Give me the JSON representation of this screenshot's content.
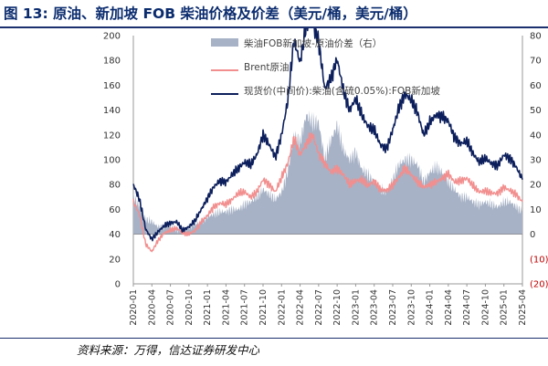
{
  "figure": {
    "title": "图 13:  原油、新加坡 FOB 柴油价格及价差（美元/桶，美元/桶）",
    "source": "资料来源：万得，信达证券研发中心"
  },
  "colors": {
    "spread": "#a7b2c6",
    "brent": "#f28e8e",
    "diesel": "#0c1f5c",
    "axis": "#999999",
    "neg": "#c00000"
  },
  "chart_data": {
    "type": "line",
    "title": "原油、新加坡 FOB 柴油价格及价差（美元/桶，美元/桶）",
    "xlabel": "",
    "ylabel": "",
    "ylim": [
      0,
      200
    ],
    "y_ticks": [
      "0",
      "20",
      "40",
      "60",
      "80",
      "100",
      "120",
      "140",
      "160",
      "180",
      "200"
    ],
    "y2lim": [
      -20,
      80
    ],
    "y2_ticks": [
      "(20)",
      "(10)",
      "0",
      "10",
      "20",
      "30",
      "40",
      "50",
      "60",
      "70",
      "80"
    ],
    "x": [
      "2020-01",
      "2020-02",
      "2020-03",
      "2020-04",
      "2020-05",
      "2020-06",
      "2020-07",
      "2020-08",
      "2020-09",
      "2020-10",
      "2020-11",
      "2020-12",
      "2021-01",
      "2021-02",
      "2021-03",
      "2021-04",
      "2021-05",
      "2021-06",
      "2021-07",
      "2021-08",
      "2021-09",
      "2021-10",
      "2021-11",
      "2021-12",
      "2022-01",
      "2022-02",
      "2022-03",
      "2022-04",
      "2022-05",
      "2022-06",
      "2022-07",
      "2022-08",
      "2022-09",
      "2022-10",
      "2022-11",
      "2022-12",
      "2023-01",
      "2023-02",
      "2023-03",
      "2023-04",
      "2023-05",
      "2023-06",
      "2023-07",
      "2023-08",
      "2023-09",
      "2023-10",
      "2023-11",
      "2023-12",
      "2024-01",
      "2024-02",
      "2024-03",
      "2024-04",
      "2024-05",
      "2024-06",
      "2024-07",
      "2024-08",
      "2024-09",
      "2024-10",
      "2024-11",
      "2024-12",
      "2025-01",
      "2025-02",
      "2025-03",
      "2025-04"
    ],
    "x_tick_labels": [
      "2020-01",
      "2020-04",
      "2020-07",
      "2020-10",
      "2021-01",
      "2021-04",
      "2021-07",
      "2021-10",
      "2022-01",
      "2022-04",
      "2022-07",
      "2022-10",
      "2023-01",
      "2023-04",
      "2023-07",
      "2023-10",
      "2024-01",
      "2024-04",
      "2024-07",
      "2024-10",
      "2025-01",
      "2025-04"
    ],
    "series": [
      {
        "name": "柴油FOB新加坡-原油价差（右）",
        "kind": "area",
        "axis": "right",
        "values": [
          15,
          11,
          6,
          5,
          3,
          3,
          3,
          2,
          1,
          3,
          4,
          5,
          7,
          8,
          9,
          9,
          10,
          10,
          12,
          13,
          15,
          18,
          16,
          14,
          17,
          25,
          40,
          37,
          48,
          45,
          45,
          30,
          38,
          44,
          34,
          30,
          33,
          26,
          24,
          21,
          18,
          17,
          22,
          28,
          30,
          30,
          28,
          21,
          25,
          27,
          25,
          21,
          18,
          15,
          15,
          13,
          12,
          13,
          12,
          11,
          13,
          13,
          11,
          9
        ]
      },
      {
        "name": "Brent原油",
        "kind": "line",
        "axis": "left",
        "values": [
          66,
          56,
          32,
          26,
          35,
          41,
          43,
          45,
          41,
          40,
          43,
          50,
          55,
          62,
          65,
          64,
          68,
          73,
          74,
          70,
          74,
          84,
          80,
          74,
          86,
          97,
          117,
          104,
          113,
          120,
          105,
          97,
          90,
          93,
          88,
          80,
          83,
          84,
          79,
          83,
          76,
          75,
          80,
          86,
          93,
          88,
          82,
          78,
          80,
          82,
          85,
          89,
          82,
          83,
          85,
          79,
          74,
          75,
          73,
          73,
          78,
          75,
          72,
          66
        ]
      },
      {
        "name": "现货价(中间价):柴油(含硫0.05%):FOB新加坡",
        "kind": "line",
        "axis": "left",
        "values": [
          80,
          68,
          44,
          36,
          42,
          47,
          49,
          50,
          43,
          46,
          51,
          60,
          69,
          78,
          83,
          82,
          88,
          93,
          98,
          96,
          104,
          120,
          112,
          102,
          120,
          147,
          197,
          178,
          209,
          210,
          195,
          157,
          166,
          181,
          156,
          140,
          149,
          136,
          127,
          124,
          112,
          109,
          124,
          142,
          153,
          148,
          138,
          120,
          130,
          136,
          135,
          131,
          118,
          113,
          115,
          105,
          98,
          101,
          97,
          95,
          104,
          101,
          94,
          84
        ]
      }
    ]
  }
}
